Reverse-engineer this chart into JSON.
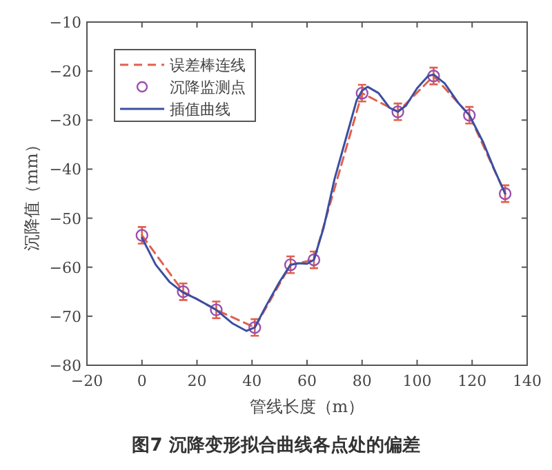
{
  "chart_data": {
    "type": "line",
    "xlabel": "管线长度（m）",
    "ylabel": "沉降值（mm）",
    "annotations": [
      "图7 沉降变形拟合曲线各点处的偏差"
    ],
    "x": [
      0,
      15,
      27,
      41,
      54,
      62.5,
      80,
      93,
      106,
      119,
      132
    ],
    "xlim": [
      -20,
      140
    ],
    "xticks": [
      -20,
      0,
      20,
      40,
      60,
      80,
      100,
      120,
      140
    ],
    "ylim": [
      -80,
      -10
    ],
    "yticks": [
      -80,
      -70,
      -60,
      -50,
      -40,
      -30,
      -20,
      -10
    ],
    "grid": false,
    "legend": "top left",
    "series": [
      {
        "name": "误差棒连线",
        "line_style": "dashed",
        "color": "#e0604f",
        "values": [
          -53.5,
          -65,
          -68.7,
          -72.3,
          -59.5,
          -58.5,
          -24.5,
          -28.3,
          -21,
          -29,
          -45
        ],
        "errors": [
          1.7,
          1.7,
          1.7,
          1.7,
          1.7,
          1.7,
          1.7,
          1.7,
          1.7,
          1.7,
          1.7
        ]
      },
      {
        "name": "沉降监测点",
        "type": "scatter",
        "marker": "circle",
        "color": "#9b4fb0",
        "values": [
          -53.5,
          -65,
          -68.7,
          -72.3,
          -59.5,
          -58.5,
          -24.5,
          -28.3,
          -21,
          -29,
          -45
        ]
      },
      {
        "name": "插值曲线",
        "line_style": "solid",
        "color": "#3a4fa0",
        "x": [
          0,
          5,
          10,
          15,
          20,
          27,
          33,
          38,
          41,
          45,
          50,
          54,
          57,
          60,
          62.5,
          66,
          70,
          75,
          78,
          80,
          82,
          86,
          90,
          93,
          96,
          100,
          104,
          106,
          110,
          115,
          119,
          124,
          128,
          132
        ],
        "values": [
          -54,
          -59.5,
          -63,
          -65.2,
          -66.5,
          -68.7,
          -71.5,
          -73,
          -72.3,
          -68,
          -63,
          -59.5,
          -59.2,
          -59.3,
          -58.5,
          -52,
          -42,
          -32,
          -26,
          -24,
          -23.2,
          -24.5,
          -27.5,
          -28.3,
          -27,
          -23.5,
          -21,
          -20.7,
          -22.5,
          -26.5,
          -29,
          -34.5,
          -40,
          -45
        ]
      }
    ]
  }
}
